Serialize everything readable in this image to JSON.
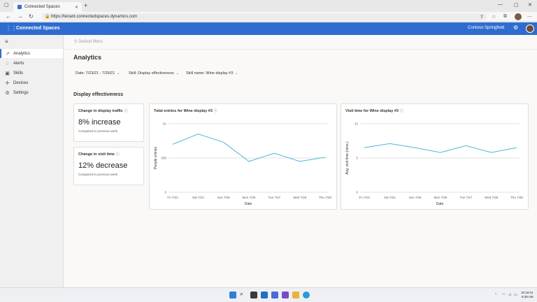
{
  "browser": {
    "tab_title": "Connected Spaces",
    "new_tab": "+",
    "url": "https://tenant.connectedspaces.dynamics.com"
  },
  "app": {
    "name": "Connected Spaces",
    "site": "Contoso Springfield",
    "brand_color": "#2f6ccf"
  },
  "nav": {
    "items": [
      {
        "label": "Analytics",
        "icon": "chart-icon"
      },
      {
        "label": "Alerts",
        "icon": "bell-icon"
      },
      {
        "label": "Skills",
        "icon": "skills-icon"
      },
      {
        "label": "Devices",
        "icon": "devices-icon"
      },
      {
        "label": "Settings",
        "icon": "gear-icon"
      }
    ],
    "active": "Analytics"
  },
  "page": {
    "default_filters": "Default filters",
    "title": "Analytics",
    "filters": {
      "date": "Date: 7/23/21 - 7/29/21",
      "skill": "Skill: Display effectiveness",
      "skill_name": "Skill name: Wine display #3"
    },
    "section_title": "Display effectiveness"
  },
  "kpis": [
    {
      "title": "Change in display traffic",
      "value": "8% increase",
      "sub": "Compared to previous week"
    },
    {
      "title": "Change in visit time",
      "value": "12% decrease",
      "sub": "Compared to previous week"
    }
  ],
  "chart_data": [
    {
      "type": "line",
      "title": "Total entries for Wine display #3",
      "xlabel": "Date",
      "ylabel": "People entries",
      "categories": [
        "Fri 7/23",
        "Sat 7/24",
        "Sun 7/25",
        "Mon 7/26",
        "Tue 7/27",
        "Wed 7/28",
        "Thu 7/29"
      ],
      "y_ticks": [
        "0",
        "500",
        "1K"
      ],
      "ylim": [
        0,
        1000
      ],
      "grid": true,
      "color": "#4db8d8",
      "series": [
        {
          "values": [
            700,
            850,
            730,
            450,
            570,
            450,
            510
          ]
        }
      ]
    },
    {
      "type": "line",
      "title": "Visit time for Wine display #3",
      "xlabel": "Date",
      "ylabel": "Avg. visit time (mins.)",
      "categories": [
        "Fri 7/23",
        "Sat 7/24",
        "Sun 7/25",
        "Mon 7/26",
        "Tue 7/27",
        "Wed 7/28",
        "Thu 7/29"
      ],
      "y_ticks": [
        "0",
        "5",
        "10"
      ],
      "ylim": [
        0,
        10
      ],
      "grid": true,
      "color": "#4db8d8",
      "series": [
        {
          "values": [
            6.5,
            7.1,
            6.5,
            5.8,
            6.8,
            5.8,
            6.5
          ]
        }
      ]
    }
  ],
  "taskbar": {
    "time": "10:16:01",
    "clock_line2": "8:28 AM"
  }
}
